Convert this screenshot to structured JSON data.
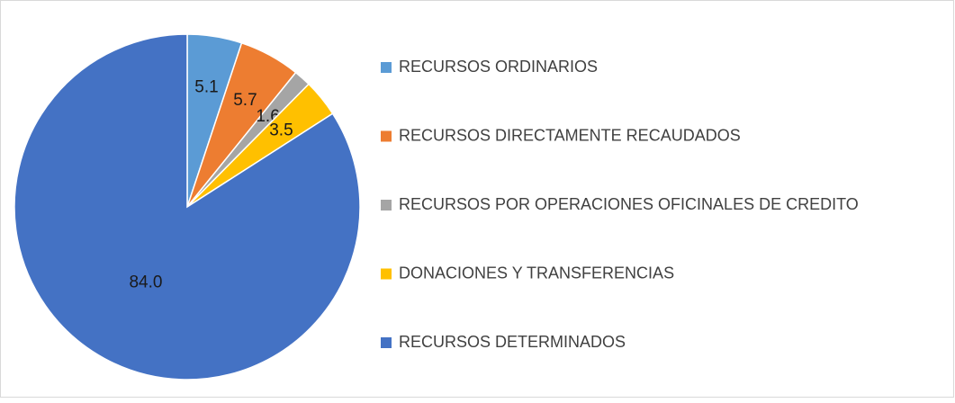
{
  "chart_data": {
    "type": "pie",
    "categories": [
      "RECURSOS ORDINARIOS",
      "RECURSOS DIRECTAMENTE RECAUDADOS",
      "RECURSOS POR OPERACIONES OFICINALES DE CREDITO",
      "DONACIONES Y TRANSFERENCIAS",
      "RECURSOS DETERMINADOS"
    ],
    "values": [
      5.1,
      5.7,
      1.6,
      3.5,
      84.0
    ],
    "value_labels": [
      "5.1",
      "5.7",
      "1.6",
      "3.5",
      "84.0"
    ],
    "colors": [
      "#5b9bd5",
      "#ed7d31",
      "#a5a5a5",
      "#ffc000",
      "#4472c4"
    ],
    "legend": "right"
  }
}
